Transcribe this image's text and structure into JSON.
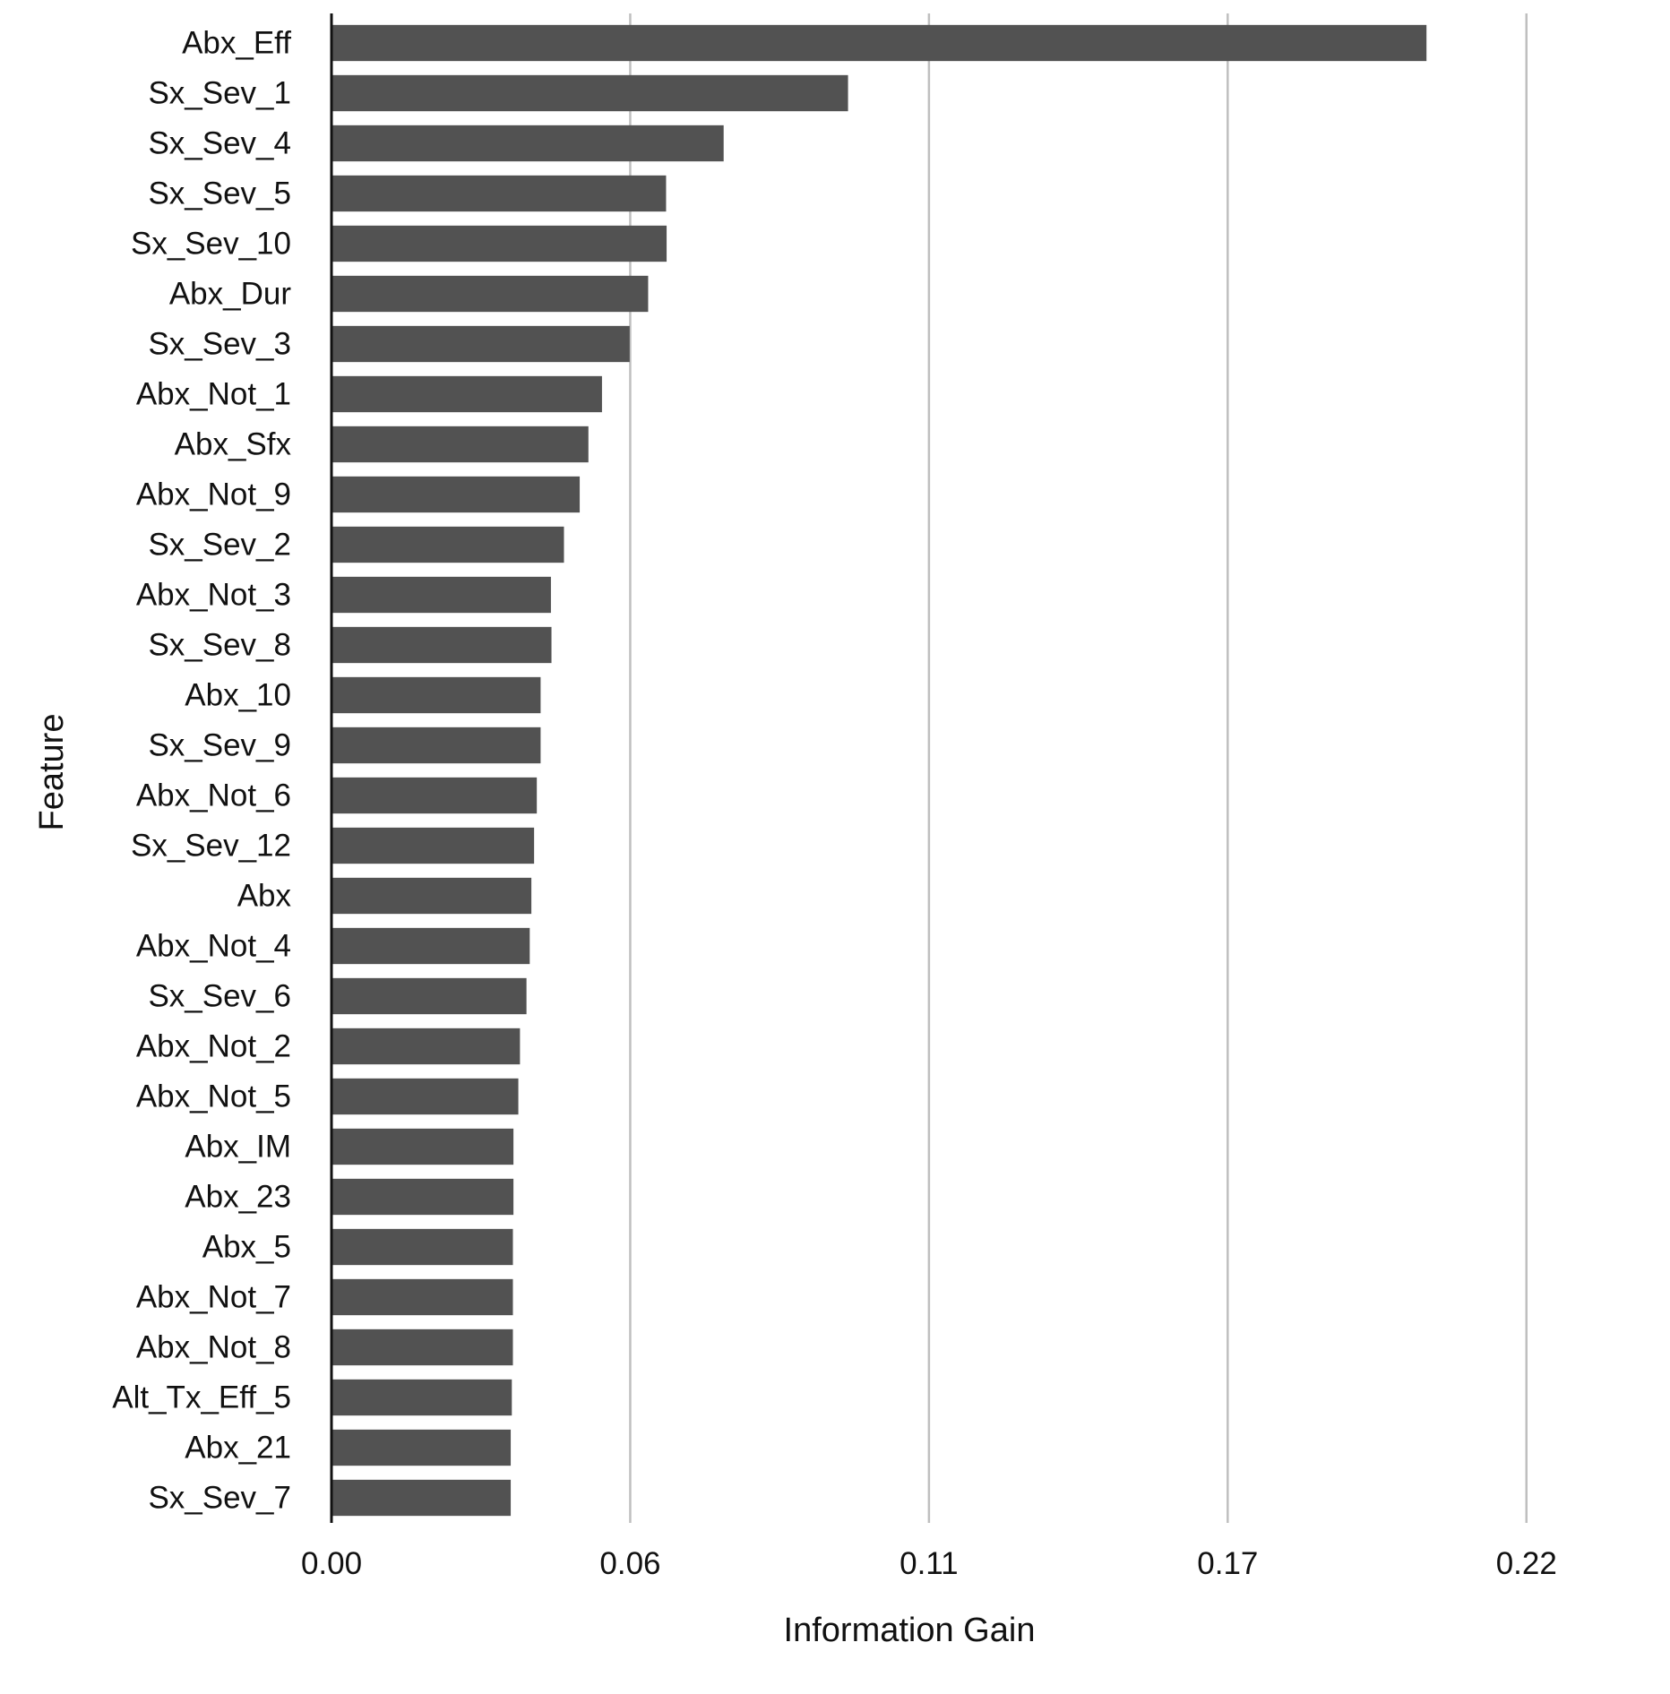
{
  "chart_data": {
    "type": "bar",
    "orientation": "horizontal",
    "title": "",
    "xlabel": "Information Gain",
    "ylabel": "Feature",
    "xlim": [
      0,
      0.24
    ],
    "xticks": [
      0,
      0.055,
      0.11,
      0.165,
      0.22
    ],
    "xtick_labels": [
      "0.00",
      "0.06",
      "0.11",
      "0.17",
      "0.22"
    ],
    "grid": "vertical",
    "legend": "none",
    "categories": [
      "Abx_Eff",
      "Sx_Sev_1",
      "Sx_Sev_4",
      "Sx_Sev_5",
      "Sx_Sev_10",
      "Abx_Dur",
      "Sx_Sev_3",
      "Abx_Not_1",
      "Abx_Sfx",
      "Abx_Not_9",
      "Sx_Sev_2",
      "Abx_Not_3",
      "Sx_Sev_8",
      "Abx_10",
      "Sx_Sev_9",
      "Abx_Not_6",
      "Sx_Sev_12",
      "Abx",
      "Abx_Not_4",
      "Sx_Sev_6",
      "Abx_Not_2",
      "Abx_Not_5",
      "Abx_IM",
      "Abx_23",
      "Abx_5",
      "Abx_Not_7",
      "Abx_Not_8",
      "Alt_Tx_Eff_5",
      "Abx_21",
      "Sx_Sev_7"
    ],
    "values": [
      0.2016,
      0.0951,
      0.0722,
      0.0616,
      0.0617,
      0.0583,
      0.0549,
      0.0498,
      0.0473,
      0.0457,
      0.0428,
      0.0404,
      0.0405,
      0.0385,
      0.0385,
      0.0378,
      0.0373,
      0.0368,
      0.0365,
      0.0359,
      0.0347,
      0.0344,
      0.0335,
      0.0335,
      0.0334,
      0.0334,
      0.0334,
      0.0332,
      0.033,
      0.033
    ],
    "colors": {
      "bar": "#525252",
      "grid": "#bfbfbf",
      "axis": "#111111",
      "text": "#111111",
      "background": "#ffffff"
    }
  }
}
